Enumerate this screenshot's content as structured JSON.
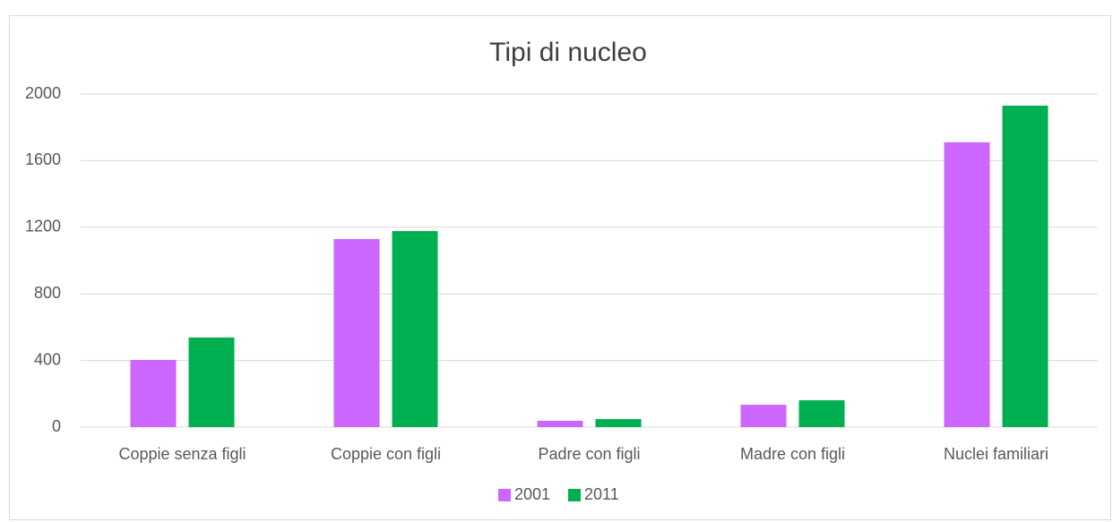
{
  "chart_data": {
    "type": "bar",
    "title": "Tipi di nucleo",
    "categories": [
      "Coppie senza figli",
      "Coppie con figli",
      "Padre con figli",
      "Madre con figli",
      "Nuclei familiari"
    ],
    "series": [
      {
        "name": "2001",
        "color": "#cc66ff",
        "values": [
          403,
          1129,
          38,
          134,
          1710
        ]
      },
      {
        "name": "2011",
        "color": "#00b050",
        "values": [
          538,
          1177,
          48,
          161,
          1930
        ]
      }
    ],
    "ylim": [
      0,
      2000
    ],
    "yticks": [
      0,
      400,
      800,
      1200,
      1600,
      2000
    ],
    "grid": true,
    "legend": "bottom"
  }
}
